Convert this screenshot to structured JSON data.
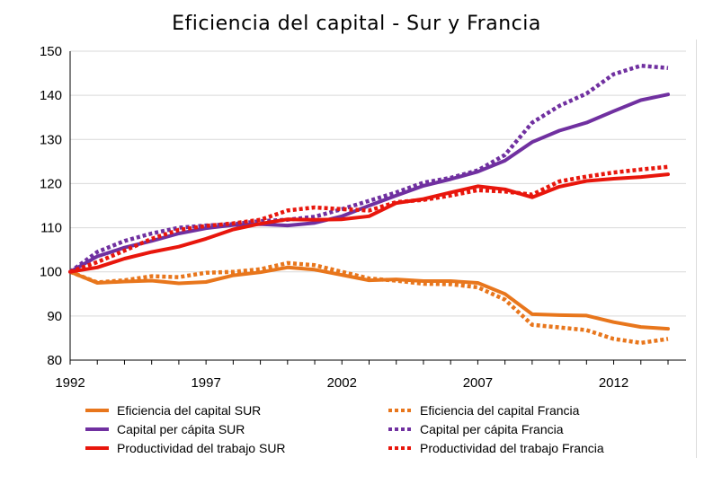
{
  "chart_data": {
    "type": "line",
    "title": "Eficiencia del capital - Sur y Francia",
    "xlabel": "",
    "ylabel": "",
    "xlim": [
      1992,
      2014
    ],
    "ylim": [
      80,
      150
    ],
    "x_ticks": [
      1992,
      1997,
      2002,
      2007,
      2012
    ],
    "y_ticks": [
      80,
      90,
      100,
      110,
      120,
      130,
      140,
      150
    ],
    "grid": true,
    "legend_position": "bottom",
    "x": [
      1992,
      1993,
      1994,
      1995,
      1996,
      1997,
      1998,
      1999,
      2000,
      2001,
      2002,
      2003,
      2004,
      2005,
      2006,
      2007,
      2008,
      2009,
      2010,
      2011,
      2012,
      2013,
      2014
    ],
    "series": [
      {
        "name": "Eficiencia del capital SUR",
        "color": "#E8761C",
        "style": "solid",
        "values": [
          100,
          97.5,
          97.8,
          98.0,
          97.4,
          97.7,
          99.2,
          99.9,
          101.0,
          100.5,
          99.3,
          98.1,
          98.3,
          97.9,
          97.9,
          97.5,
          95.0,
          90.4,
          90.2,
          90.1,
          88.6,
          87.5,
          87.1
        ]
      },
      {
        "name": "Eficiencia del capital Francia",
        "color": "#E8761C",
        "style": "dotted",
        "values": [
          100,
          97.6,
          98.1,
          99.0,
          98.8,
          99.8,
          100.0,
          100.6,
          102.0,
          101.5,
          100.0,
          98.5,
          98.0,
          97.3,
          97.2,
          96.5,
          93.7,
          88.0,
          87.4,
          86.8,
          84.8,
          83.9,
          84.8
        ]
      },
      {
        "name": "Capital per cápita SUR",
        "color": "#7030A0",
        "style": "solid",
        "values": [
          100,
          103.5,
          105.5,
          107.0,
          108.7,
          109.9,
          110.6,
          110.8,
          110.5,
          111.1,
          112.6,
          115.0,
          117.3,
          119.5,
          121.0,
          122.7,
          125.2,
          129.4,
          132.0,
          133.8,
          136.4,
          138.9,
          140.2
        ]
      },
      {
        "name": "Capital per cápita Francia",
        "color": "#7030A0",
        "style": "dotted",
        "values": [
          100,
          104.5,
          107.0,
          108.7,
          110.0,
          110.5,
          110.8,
          111.5,
          111.8,
          112.5,
          114.2,
          116.1,
          118.0,
          120.2,
          121.3,
          123.0,
          126.5,
          133.8,
          137.6,
          140.4,
          144.8,
          146.7,
          146.2
        ]
      },
      {
        "name": "Productividad del trabajo SUR",
        "color": "#E8160C",
        "style": "solid",
        "values": [
          100,
          101.0,
          103.0,
          104.5,
          105.7,
          107.5,
          109.6,
          110.9,
          111.9,
          111.8,
          111.9,
          112.6,
          115.6,
          116.5,
          118.0,
          119.4,
          118.7,
          116.9,
          119.3,
          120.6,
          121.1,
          121.5,
          122.1
        ]
      },
      {
        "name": "Productividad del trabajo Francia",
        "color": "#E8160C",
        "style": "dotted",
        "values": [
          100,
          102.2,
          104.8,
          107.5,
          109.5,
          110.4,
          111.0,
          111.8,
          113.9,
          114.6,
          114.2,
          113.9,
          115.8,
          116.3,
          117.3,
          118.5,
          118.2,
          117.5,
          120.5,
          121.6,
          122.5,
          123.2,
          123.8
        ]
      }
    ]
  }
}
